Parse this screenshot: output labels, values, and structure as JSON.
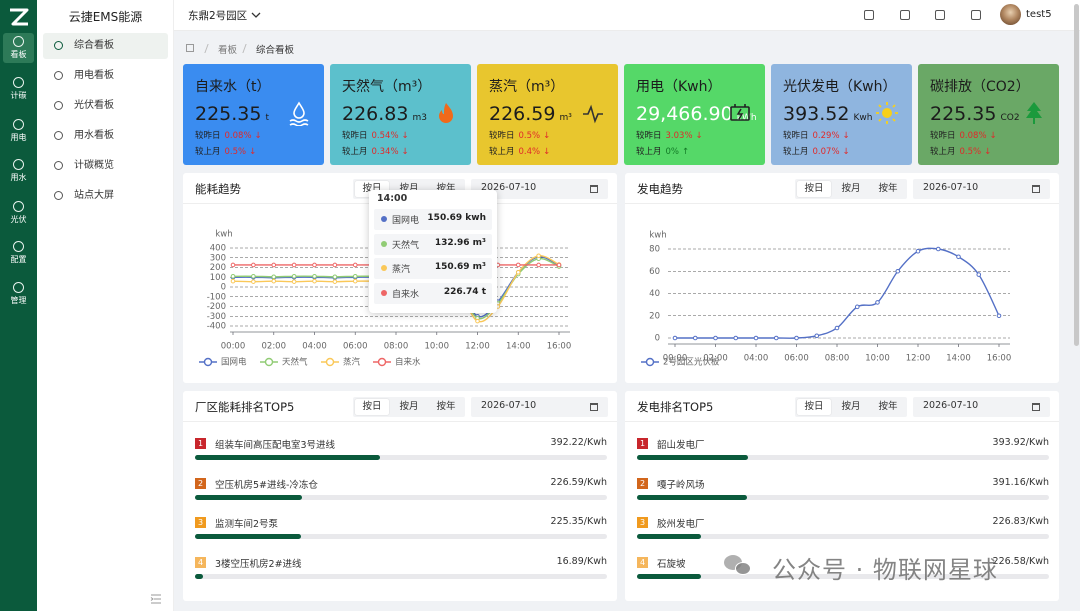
{
  "rail": {
    "active": 0,
    "items": [
      "看板",
      "计碳",
      "用电",
      "用水",
      "光伏",
      "配置",
      "管理"
    ]
  },
  "menu": {
    "title": "云捷EMS能源",
    "active": 0,
    "items": [
      "综合看板",
      "用电看板",
      "光伏看板",
      "用水看板",
      "计碳概览",
      "站点大屏"
    ]
  },
  "topbar": {
    "site": "东鼎2号园区",
    "user": "test5"
  },
  "breadcrumb": [
    "看板",
    "综合看板"
  ],
  "kpis": [
    {
      "title": "自来水（t）",
      "value": "225.35",
      "unit": "t",
      "color": "#3a8cf0",
      "compare": [
        {
          "label": "较昨日",
          "change": "0.08%",
          "arrow": "↓",
          "trend_color": "#e02a2a"
        },
        {
          "label": "较上月",
          "change": "0.5%",
          "arrow": "↓",
          "trend_color": "#e02a2a"
        }
      ]
    },
    {
      "title": "天然气（m³）",
      "value": "226.83",
      "unit": "m3",
      "color": "#5cc0cc",
      "compare": [
        {
          "label": "较昨日",
          "change": "0.54%",
          "arrow": "↓",
          "trend_color": "#e02a2a"
        },
        {
          "label": "较上月",
          "change": "0.34%",
          "arrow": "↓",
          "trend_color": "#e02a2a"
        }
      ]
    },
    {
      "title": "蒸汽（m³）",
      "value": "226.59",
      "unit": "m³",
      "color": "#e8c62e",
      "compare": [
        {
          "label": "较昨日",
          "change": "0.5%",
          "arrow": "↓",
          "trend_color": "#e02a2a"
        },
        {
          "label": "较上月",
          "change": "0.4%",
          "arrow": "↓",
          "trend_color": "#e02a2a"
        }
      ]
    },
    {
      "title": "用电（Kwh）",
      "value": "29,466.90",
      "unit": "kWh",
      "color": "#55d868",
      "compare": [
        {
          "label": "较昨日",
          "change": "3.03%",
          "arrow": "↓",
          "trend_color": "#e02a2a"
        },
        {
          "label": "较上月",
          "change": "0%",
          "arrow": "↑",
          "trend_color": "#137a26"
        }
      ]
    },
    {
      "title": "光伏发电（Kwh）",
      "value": "393.52",
      "unit": "Kwh",
      "color": "#8fb5df",
      "compare": [
        {
          "label": "较昨日",
          "change": "0.29%",
          "arrow": "↓",
          "trend_color": "#e02a2a"
        },
        {
          "label": "较上月",
          "change": "0.07%",
          "arrow": "↓",
          "trend_color": "#e02a2a"
        }
      ]
    },
    {
      "title": "碳排放（CO2）",
      "value": "225.35",
      "unit": "CO2",
      "color": "#6aa866",
      "compare": [
        {
          "label": "较昨日",
          "change": "0.08%",
          "arrow": "↓",
          "trend_color": "#e02a2a"
        },
        {
          "label": "较上月",
          "change": "0.5%",
          "arrow": "↓",
          "trend_color": "#e02a2a"
        }
      ]
    }
  ],
  "energy_trend": {
    "title": "能耗趋势",
    "tabs": [
      "按日",
      "按月",
      "按年"
    ],
    "active_tab": 0,
    "date": "2026-07-10",
    "chart_data": {
      "type": "line",
      "y_label": "kwh",
      "x": [
        0,
        1,
        2,
        3,
        4,
        5,
        6,
        7,
        8,
        9,
        10,
        11,
        12,
        13,
        14,
        15,
        16
      ],
      "xlim": [
        0,
        16
      ],
      "xticks": [
        {
          "value": 0,
          "label": "00:00"
        },
        {
          "value": 2,
          "label": "02:00"
        },
        {
          "value": 4,
          "label": "04:00"
        },
        {
          "value": 6,
          "label": "06:00"
        },
        {
          "value": 8,
          "label": "08:00"
        },
        {
          "value": 10,
          "label": "10:00"
        },
        {
          "value": 12,
          "label": "12:00"
        },
        {
          "value": 14,
          "label": "14:00"
        },
        {
          "value": 16,
          "label": "16:00"
        }
      ],
      "ylim": [
        -400,
        400
      ],
      "yticks": [
        -400,
        -300,
        -200,
        -100,
        0,
        100,
        200,
        300,
        400
      ],
      "grid": true,
      "legend": "bottom-left",
      "series": [
        {
          "name": "国网电",
          "color": "#5470c6",
          "values": [
            100,
            100,
            95,
            100,
            100,
            95,
            100,
            100,
            100,
            100,
            100,
            40,
            -300,
            -150,
            150.69,
            310,
            220
          ]
        },
        {
          "name": "天然气",
          "color": "#91cc75",
          "values": [
            110,
            110,
            105,
            110,
            110,
            105,
            110,
            110,
            110,
            110,
            100,
            20,
            -320,
            -170,
            132.96,
            290,
            210
          ]
        },
        {
          "name": "蒸汽",
          "color": "#fac858",
          "values": [
            60,
            55,
            60,
            55,
            60,
            55,
            60,
            60,
            60,
            60,
            60,
            -10,
            -350,
            -200,
            150.69,
            320,
            230
          ]
        },
        {
          "name": "自来水",
          "color": "#ee6666",
          "values": [
            226,
            226,
            226,
            226,
            226,
            226,
            226,
            226,
            226,
            226,
            226,
            226,
            226,
            226,
            226.74,
            226,
            226
          ]
        }
      ]
    },
    "tooltip": {
      "title": "14:00",
      "index": 14,
      "value_labels": [
        "150.69 kwh",
        "132.96 m³",
        "150.69 m³",
        "226.74 t"
      ]
    }
  },
  "power_trend": {
    "title": "发电趋势",
    "tabs": [
      "按日",
      "按月",
      "按年"
    ],
    "active_tab": 0,
    "date": "2026-07-10",
    "chart_data": {
      "type": "line",
      "y_label": "kwh",
      "x": [
        0,
        1,
        2,
        3,
        4,
        5,
        6,
        7,
        8,
        9,
        10,
        11,
        12,
        13,
        14,
        15,
        16
      ],
      "xlim": [
        0,
        16
      ],
      "xticks": [
        {
          "value": 0,
          "label": "00:00"
        },
        {
          "value": 2,
          "label": "02:00"
        },
        {
          "value": 4,
          "label": "04:00"
        },
        {
          "value": 6,
          "label": "06:00"
        },
        {
          "value": 8,
          "label": "08:00"
        },
        {
          "value": 10,
          "label": "10:00"
        },
        {
          "value": 12,
          "label": "12:00"
        },
        {
          "value": 14,
          "label": "14:00"
        },
        {
          "value": 16,
          "label": "16:00"
        }
      ],
      "ylim": [
        0,
        80
      ],
      "yticks": [
        0,
        20,
        40,
        60,
        80
      ],
      "grid": true,
      "legend": "bottom-left",
      "series": [
        {
          "name": "2号园区光伏板",
          "color": "#5470c6",
          "values": [
            0,
            0,
            0,
            0,
            0,
            0,
            0,
            2,
            9,
            28,
            32,
            60,
            78,
            80,
            73,
            57,
            20
          ]
        }
      ]
    }
  },
  "plant_rank": {
    "title": "厂区能耗排名TOP5",
    "tabs": [
      "按日",
      "按月",
      "按年"
    ],
    "active_tab": 0,
    "date": "2026-07-10",
    "items": [
      {
        "rank": 1,
        "rank_color": "#c8262c",
        "name": "组装车间高压配电室3号进线",
        "value": 392.22,
        "value_label": "392.22/Kwh"
      },
      {
        "rank": 2,
        "rank_color": "#d2661c",
        "name": "空压机房5#进线-冷冻仓",
        "value": 226.59,
        "value_label": "226.59/Kwh"
      },
      {
        "rank": 3,
        "rank_color": "#f09a1e",
        "name": "监测车间2号泵",
        "value": 225.35,
        "value_label": "225.35/Kwh"
      },
      {
        "rank": 4,
        "rank_color": "#f5b65c",
        "name": "3楼空压机房2#进线",
        "value": 16.89,
        "value_label": "16.89/Kwh"
      }
    ]
  },
  "power_rank": {
    "title": "发电排名TOP5",
    "tabs": [
      "按日",
      "按月",
      "按年"
    ],
    "active_tab": 0,
    "date": "2026-07-10",
    "items": [
      {
        "rank": 1,
        "rank_color": "#c8262c",
        "name": "韶山发电厂",
        "value": 393.92,
        "value_label": "393.92/Kwh"
      },
      {
        "rank": 2,
        "rank_color": "#d2661c",
        "name": "嘎子岭风场",
        "value": 391.16,
        "value_label": "391.16/Kwh"
      },
      {
        "rank": 3,
        "rank_color": "#f09a1e",
        "name": "胶州发电厂",
        "value": 226.83,
        "value_label": "226.83/Kwh"
      },
      {
        "rank": 4,
        "rank_color": "#f5b65c",
        "name": "石旋坡",
        "value": 226.58,
        "value_label": "226.58/Kwh"
      }
    ]
  },
  "watermark": "公众号 · 物联网星球"
}
